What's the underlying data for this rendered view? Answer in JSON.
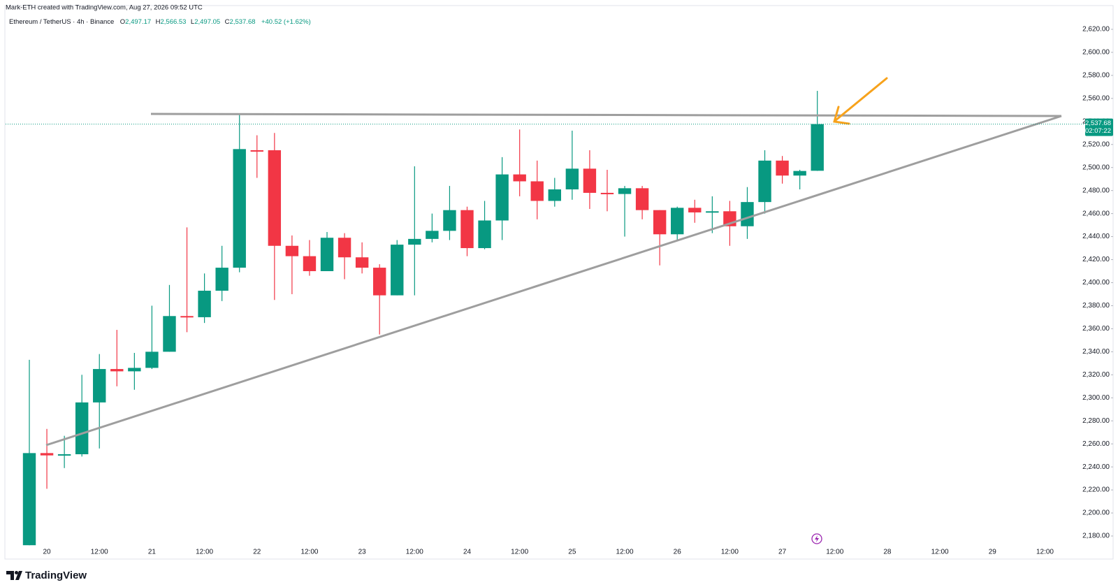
{
  "header": {
    "attribution": "Mark-ETH created with TradingView.com, Aug 27, 2026 09:52 UTC",
    "symbol": "Ethereum / TetherUS · 4h · Binance",
    "ohlc": [
      {
        "key": "O",
        "value": "2,497.17"
      },
      {
        "key": "H",
        "value": "2,566.53"
      },
      {
        "key": "L",
        "value": "2,497.05"
      },
      {
        "key": "C",
        "value": "2,537.68"
      }
    ],
    "change": "+40.52 (+1.62%)"
  },
  "brand": "TradingView",
  "chart_data": {
    "type": "candlestick",
    "up_color": "#089981",
    "down_color": "#f23645",
    "categories": [
      null,
      "20",
      null,
      null,
      "12:00",
      null,
      null,
      "21",
      null,
      null,
      "12:00",
      null,
      null,
      "22",
      null,
      null,
      "12:00",
      null,
      null,
      "23",
      null,
      null,
      "12:00",
      null,
      null,
      "24",
      null,
      null,
      "12:00",
      null,
      null,
      "25",
      null,
      null,
      "12:00",
      null,
      null,
      "26",
      null,
      null,
      "12:00",
      null,
      null,
      "27",
      null,
      null,
      "12:00",
      null,
      null,
      "28",
      null,
      null,
      "12:00",
      null,
      null,
      "29",
      null,
      null,
      "12:00"
    ],
    "open": [
      2172,
      2252,
      2250,
      2251,
      2296,
      2325,
      2323,
      2326,
      2340,
      2371,
      2370,
      2393,
      2413,
      2515,
      2515,
      2432,
      2423,
      2410,
      2439,
      2422,
      2413,
      2389,
      2433,
      2438,
      2445,
      2463,
      2430,
      2454,
      2494,
      2488,
      2471,
      2481,
      2499,
      2478,
      2477,
      2482,
      2463,
      2442,
      2465,
      2461,
      2462,
      2449,
      2470,
      2506,
      2493,
      2497.17,
      null,
      null,
      null,
      null,
      null,
      null,
      null,
      null,
      null,
      null,
      null,
      null,
      null
    ],
    "high": [
      2333,
      2273,
      2267,
      2320,
      2338,
      2359,
      2339,
      2380,
      2398,
      2448,
      2408,
      2432,
      2546,
      2528,
      2530,
      2441,
      2437,
      2444,
      2443,
      2435,
      2416,
      2437,
      2501,
      2460,
      2484,
      2466,
      2471,
      2509,
      2533,
      2506,
      2491,
      2532,
      2515,
      2498,
      2484,
      2484,
      2463,
      2466,
      2472,
      2475,
      2471,
      2483,
      2515,
      2510,
      2498,
      2566.53,
      null,
      null,
      null,
      null,
      null,
      null,
      null,
      null,
      null,
      null,
      null,
      null,
      null
    ],
    "low": [
      2172,
      2221,
      2239,
      2249,
      2256,
      2310,
      2307,
      2325,
      2340,
      2357,
      2365,
      2384,
      2409,
      2491,
      2385,
      2390,
      2406,
      2410,
      2403,
      2408,
      2355,
      2389,
      2389,
      2435,
      2437,
      2423,
      2429,
      2437,
      2475,
      2455,
      2466,
      2472,
      2464,
      2462,
      2440,
      2455,
      2415,
      2436,
      2452,
      2443,
      2432,
      2438,
      2460,
      2486,
      2481,
      2497.05,
      null,
      null,
      null,
      null,
      null,
      null,
      null,
      null,
      null,
      null,
      null,
      null,
      null
    ],
    "close": [
      2252,
      2250,
      2251,
      2296,
      2325,
      2323,
      2326,
      2340,
      2371,
      2370,
      2393,
      2413,
      2516,
      2514,
      2432,
      2423,
      2410,
      2439,
      2422,
      2413,
      2389,
      2433,
      2438,
      2445,
      2463,
      2430,
      2454,
      2494,
      2488,
      2471,
      2481,
      2499,
      2478,
      2477,
      2482,
      2463,
      2442,
      2465,
      2461,
      2462,
      2449,
      2470,
      2506,
      2493,
      2497,
      2537.68,
      null,
      null,
      null,
      null,
      null,
      null,
      null,
      null,
      null,
      null,
      null,
      null,
      null
    ],
    "ylim": [
      2170,
      2640
    ],
    "yticks": [
      {
        "value": 2180,
        "label": "2,180.00"
      },
      {
        "value": 2200,
        "label": "2,200.00"
      },
      {
        "value": 2220,
        "label": "2,220.00"
      },
      {
        "value": 2240,
        "label": "2,240.00"
      },
      {
        "value": 2260,
        "label": "2,260.00"
      },
      {
        "value": 2280,
        "label": "2,280.00"
      },
      {
        "value": 2300,
        "label": "2,300.00"
      },
      {
        "value": 2320,
        "label": "2,320.00"
      },
      {
        "value": 2340,
        "label": "2,340.00"
      },
      {
        "value": 2360,
        "label": "2,360.00"
      },
      {
        "value": 2380,
        "label": "2,380.00"
      },
      {
        "value": 2400,
        "label": "2,400.00"
      },
      {
        "value": 2420,
        "label": "2,420.00"
      },
      {
        "value": 2440,
        "label": "2,440.00"
      },
      {
        "value": 2460,
        "label": "2,460.00"
      },
      {
        "value": 2480,
        "label": "2,480.00"
      },
      {
        "value": 2500,
        "label": "2,500.00"
      },
      {
        "value": 2520,
        "label": "2,520.00"
      },
      {
        "value": 2540,
        "label": "2,540.00"
      },
      {
        "value": 2560,
        "label": "2,560.00"
      },
      {
        "value": 2580,
        "label": "2,580.00"
      },
      {
        "value": 2600,
        "label": "2,600.00"
      },
      {
        "value": 2620,
        "label": "2,620.00"
      }
    ],
    "last_price": {
      "value": 2537.68,
      "label": "2,537.68"
    },
    "countdown": "02:07:22",
    "grid": false
  }
}
